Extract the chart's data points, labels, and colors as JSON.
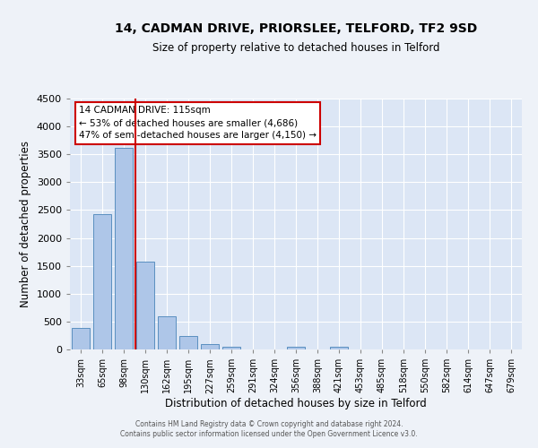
{
  "title": "14, CADMAN DRIVE, PRIORSLEE, TELFORD, TF2 9SD",
  "subtitle": "Size of property relative to detached houses in Telford",
  "xlabel": "Distribution of detached houses by size in Telford",
  "ylabel": "Number of detached properties",
  "categories": [
    "33sqm",
    "65sqm",
    "98sqm",
    "130sqm",
    "162sqm",
    "195sqm",
    "227sqm",
    "259sqm",
    "291sqm",
    "324sqm",
    "356sqm",
    "388sqm",
    "421sqm",
    "453sqm",
    "485sqm",
    "518sqm",
    "550sqm",
    "582sqm",
    "614sqm",
    "647sqm",
    "679sqm"
  ],
  "bar_heights": [
    380,
    2420,
    3620,
    1580,
    600,
    240,
    95,
    50,
    0,
    0,
    45,
    0,
    55,
    0,
    0,
    0,
    0,
    0,
    0,
    0,
    0
  ],
  "bar_color": "#aec6e8",
  "bar_edge_color": "#5a8fc0",
  "ylim": [
    0,
    4500
  ],
  "yticks": [
    0,
    500,
    1000,
    1500,
    2000,
    2500,
    3000,
    3500,
    4000,
    4500
  ],
  "vline_x": 2.53,
  "vline_color": "#cc0000",
  "annotation_title": "14 CADMAN DRIVE: 115sqm",
  "annotation_line1": "← 53% of detached houses are smaller (4,686)",
  "annotation_line2": "47% of semi-detached houses are larger (4,150) →",
  "annotation_box_color": "#cc0000",
  "footer1": "Contains HM Land Registry data © Crown copyright and database right 2024.",
  "footer2": "Contains public sector information licensed under the Open Government Licence v3.0.",
  "bg_color": "#eef2f8",
  "plot_bg_color": "#dce6f5"
}
